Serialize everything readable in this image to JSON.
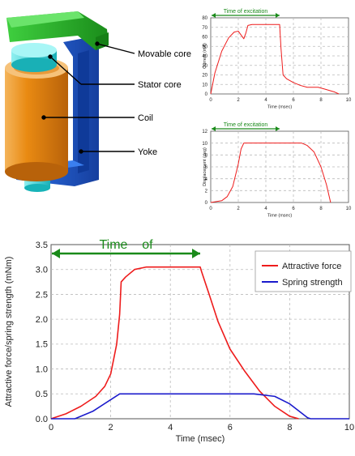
{
  "diagram": {
    "labels": [
      "Movable core",
      "Stator core",
      "Coil",
      "Yoke"
    ],
    "colors": {
      "movable": "#2bb82b",
      "stator": "#22c8cf",
      "coil": "#e88f19",
      "yoke": "#1f5fd8",
      "tube": "#1bc6c6"
    }
  },
  "chart_data": [
    {
      "type": "line",
      "title": "",
      "annotation": "Time of excitation",
      "xlabel": "Time (msec)",
      "ylabel": "Current (mA)",
      "xlim": [
        0,
        10
      ],
      "ylim": [
        0,
        80
      ],
      "xticks": [
        0,
        2,
        4,
        6,
        8,
        10
      ],
      "yticks": [
        0,
        10,
        20,
        30,
        40,
        50,
        60,
        70,
        80
      ],
      "excitation": [
        0,
        5
      ],
      "series": [
        {
          "color": "#ee1c1c",
          "x": [
            0,
            0.3,
            0.8,
            1.3,
            1.7,
            2.0,
            2.2,
            2.4,
            2.55,
            2.7,
            3.0,
            4.0,
            5.0,
            5.1,
            5.25,
            5.5,
            6.0,
            6.5,
            7.0,
            7.8,
            8.3,
            9.0,
            9.3
          ],
          "y": [
            0,
            22,
            45,
            59,
            65,
            66,
            62,
            58,
            64,
            72,
            73,
            73,
            73,
            48,
            20,
            16,
            12,
            9,
            7,
            7,
            5,
            2,
            0
          ]
        }
      ]
    },
    {
      "type": "line",
      "title": "",
      "annotation": "Time of excitation",
      "xlabel": "Time (msec)",
      "ylabel": "Displacement (deg)",
      "xlim": [
        0,
        10
      ],
      "ylim": [
        0,
        12
      ],
      "xticks": [
        0,
        2,
        4,
        6,
        8,
        10
      ],
      "yticks": [
        0,
        2,
        4,
        6,
        8,
        10,
        12
      ],
      "excitation": [
        0,
        5
      ],
      "series": [
        {
          "color": "#ee1c1c",
          "x": [
            0,
            0.8,
            1.2,
            1.6,
            2.0,
            2.2,
            2.4,
            3.0,
            6.6,
            7.0,
            7.5,
            8.0,
            8.4,
            8.7
          ],
          "y": [
            0,
            0.3,
            1.0,
            2.7,
            6.5,
            9.0,
            10.0,
            10.0,
            10.0,
            9.6,
            8.5,
            6.0,
            3.0,
            0
          ]
        }
      ]
    },
    {
      "type": "line",
      "title": "",
      "annotation": "Time    of",
      "xlabel": "Time (msec)",
      "ylabel": "Attractive force/spring strength (mNm)",
      "xlim": [
        0,
        10
      ],
      "ylim": [
        0,
        3.5
      ],
      "xticks": [
        0,
        2,
        4,
        6,
        8,
        10
      ],
      "yticks": [
        0,
        0.5,
        1.0,
        1.5,
        2.0,
        2.5,
        3.0,
        3.5
      ],
      "ytick_labels": [
        "0.0",
        "0.5",
        "1.0",
        "1.5",
        "2.0",
        "2.5",
        "3.0",
        "3.5"
      ],
      "excitation": [
        0,
        5
      ],
      "legend": "top-right",
      "series": [
        {
          "name": "Attractive force",
          "color": "#ee1c1c",
          "x": [
            0,
            0.5,
            1.0,
            1.5,
            1.8,
            2.0,
            2.1,
            2.2,
            2.3,
            2.35,
            2.5,
            2.8,
            3.2,
            4.0,
            5.0,
            5.05,
            5.3,
            5.6,
            6.0,
            6.5,
            7.0,
            7.5,
            8.0,
            8.3
          ],
          "y": [
            0,
            0.1,
            0.25,
            0.45,
            0.65,
            0.9,
            1.2,
            1.5,
            2.1,
            2.75,
            2.85,
            3.0,
            3.05,
            3.05,
            3.05,
            2.95,
            2.5,
            1.95,
            1.4,
            0.95,
            0.55,
            0.25,
            0.05,
            0
          ]
        },
        {
          "name": "Spring strength",
          "color": "#1a1acc",
          "x": [
            0,
            0.8,
            1.4,
            2.3,
            3.0,
            5.0,
            6.8,
            7.5,
            8.0,
            8.6,
            8.7,
            10
          ],
          "y": [
            0,
            0,
            0.15,
            0.5,
            0.5,
            0.5,
            0.5,
            0.45,
            0.3,
            0.02,
            0,
            0
          ]
        }
      ]
    }
  ]
}
